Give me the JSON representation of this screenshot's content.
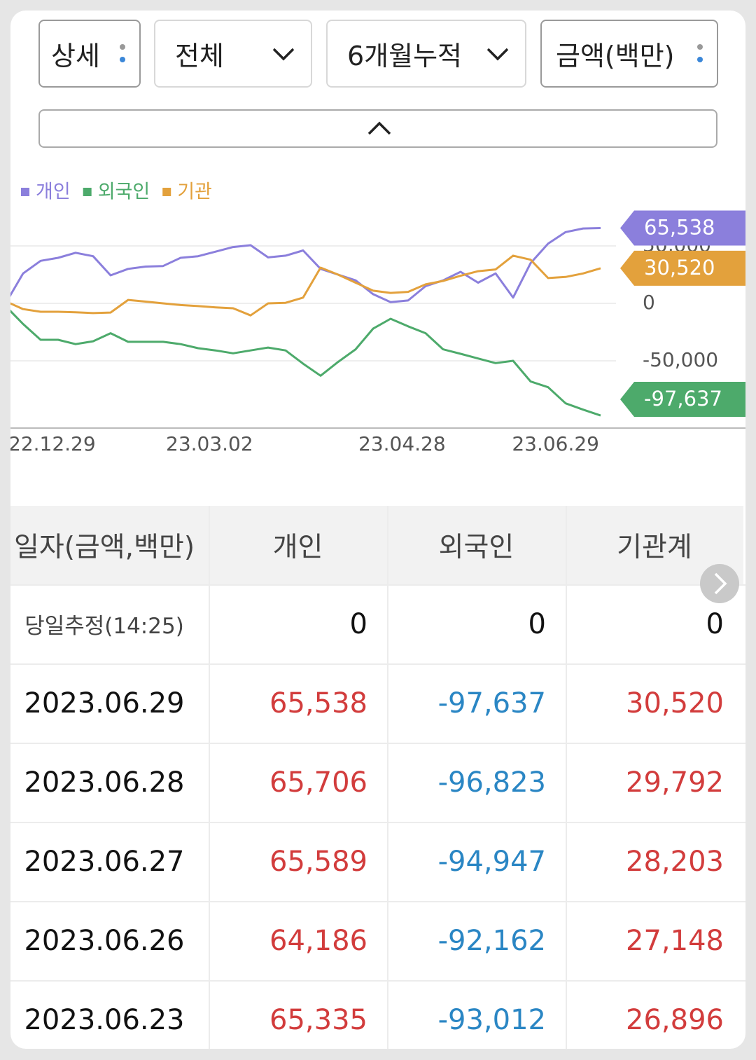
{
  "controls": {
    "dropdowns": [
      "상세",
      "전체",
      "6개월누적",
      "금액(백만)"
    ]
  },
  "chart_data": {
    "type": "line",
    "categories": [
      "22.12.29",
      null,
      null,
      null,
      null,
      null,
      null,
      null,
      null,
      "23.03.02",
      null,
      null,
      null,
      null,
      null,
      null,
      null,
      null,
      null,
      null,
      "23.04.28",
      null,
      null,
      null,
      null,
      null,
      null,
      null,
      null,
      null,
      null,
      null,
      null,
      null,
      "23.06.29"
    ],
    "series": [
      {
        "name": "개인",
        "color": "#8b7fdc",
        "values": [
          0,
          26000,
          37000,
          39600,
          44000,
          41000,
          24400,
          30000,
          32000,
          32500,
          39600,
          41000,
          45000,
          49000,
          50600,
          40000,
          41500,
          46000,
          30000,
          25000,
          20000,
          8000,
          1000,
          2500,
          15000,
          20000,
          27400,
          18000,
          26000,
          5000,
          35000,
          52000,
          62000,
          65200,
          65538
        ],
        "value_labels": [
          null,
          null,
          null,
          null,
          null,
          null,
          null,
          null,
          null,
          null,
          null,
          null,
          null,
          null,
          null,
          null,
          null,
          null,
          null,
          null,
          null,
          null,
          null,
          null,
          null,
          null,
          null,
          null,
          null,
          null,
          null,
          null,
          null,
          null,
          "65,538"
        ]
      },
      {
        "name": "외국인",
        "color": "#4daa6b",
        "values": [
          -2400,
          -18000,
          -31700,
          -31700,
          -35500,
          -33000,
          -26000,
          -33500,
          -33500,
          -33500,
          -35500,
          -39000,
          -41000,
          -43500,
          -41000,
          -38500,
          -41000,
          -52500,
          -63000,
          -51000,
          -40000,
          -22000,
          -13400,
          -20000,
          -26000,
          -40000,
          -43900,
          -48000,
          -52000,
          -50000,
          -68000,
          -73000,
          -87000,
          -92500,
          -97637
        ],
        "value_labels": [
          null,
          null,
          null,
          null,
          null,
          null,
          null,
          null,
          null,
          null,
          null,
          null,
          null,
          null,
          null,
          null,
          null,
          null,
          null,
          null,
          null,
          null,
          null,
          null,
          null,
          null,
          null,
          null,
          null,
          null,
          null,
          null,
          null,
          null,
          "-97,637"
        ]
      },
      {
        "name": "기관",
        "color": "#e3a13c",
        "values": [
          1800,
          -5000,
          -7300,
          -7300,
          -7800,
          -8500,
          -8000,
          3000,
          1500,
          0,
          -1500,
          -2400,
          -3500,
          -4300,
          -10500,
          0,
          500,
          5000,
          31100,
          25000,
          18000,
          11000,
          9100,
          10000,
          16500,
          19500,
          24000,
          28000,
          29500,
          41500,
          38000,
          22000,
          23000,
          26000,
          30520
        ],
        "value_labels": [
          null,
          null,
          null,
          null,
          null,
          null,
          null,
          null,
          null,
          null,
          null,
          null,
          null,
          null,
          null,
          null,
          null,
          null,
          null,
          null,
          null,
          null,
          null,
          null,
          null,
          null,
          null,
          null,
          null,
          null,
          null,
          null,
          null,
          null,
          "30,520"
        ]
      }
    ],
    "ylim": [
      -105000,
      82000
    ],
    "yticks": [
      {
        "value": 50000,
        "label": "50,000"
      },
      0,
      {
        "value": -50000,
        "label": "-50,000"
      }
    ],
    "grid": true,
    "legend": "top-left"
  },
  "table": {
    "header": [
      "일자(금액,백만)",
      "개인",
      "외국인",
      "기관계"
    ],
    "rows": [
      [
        "당일추정(14:25)",
        "0",
        "0",
        "0"
      ],
      [
        "2023.06.29",
        "65,538",
        "-97,637",
        "30,520"
      ],
      [
        "2023.06.28",
        "65,706",
        "-96,823",
        "29,792"
      ],
      [
        "2023.06.27",
        "65,589",
        "-94,947",
        "28,203"
      ],
      [
        "2023.06.26",
        "64,186",
        "-92,162",
        "27,148"
      ],
      [
        "2023.06.23",
        "65,335",
        "-93,012",
        "26,896"
      ]
    ]
  }
}
